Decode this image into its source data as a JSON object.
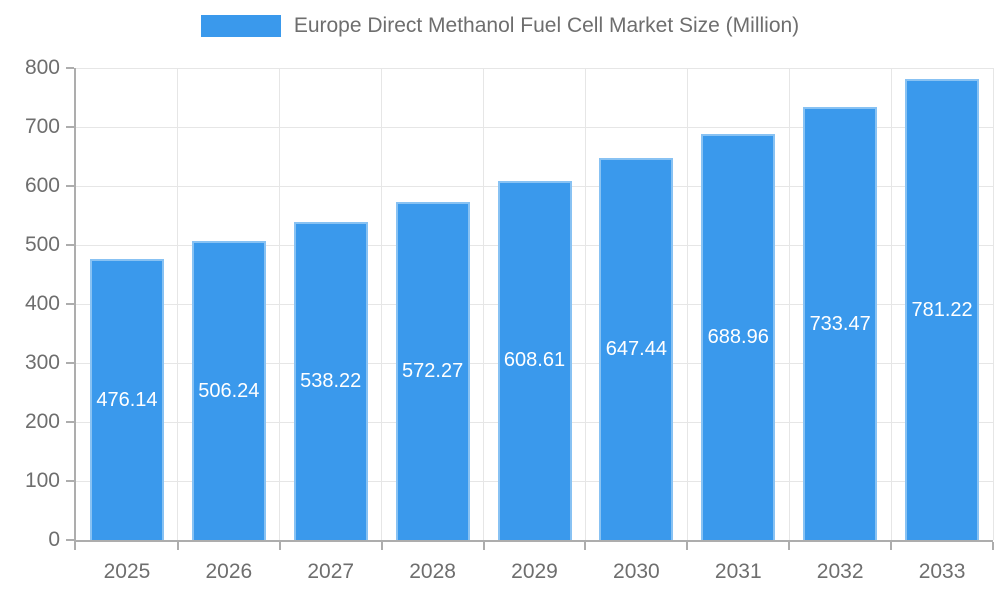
{
  "chart": {
    "legend_swatch_color": "#3a99ec",
    "colors": {
      "bar_fill": "#3a99ec",
      "bar_border_highlight": "rgba(255,255,255,0.4)",
      "gridline": "#e6e6e6",
      "axis_line": "#adadad",
      "tick_text": "#6e6e6e",
      "title_text": "#6e6e6e",
      "bar_value_text": "#ffffff",
      "background": "#ffffff"
    }
  },
  "chart_data": {
    "type": "bar",
    "title": "Europe Direct Methanol Fuel Cell Market Size (Million)",
    "categories": [
      "2025",
      "2026",
      "2027",
      "2028",
      "2029",
      "2030",
      "2031",
      "2032",
      "2033"
    ],
    "values": [
      476.14,
      506.24,
      538.22,
      572.27,
      608.61,
      647.44,
      688.96,
      733.47,
      781.22
    ],
    "value_labels": [
      "476.14",
      "506.24",
      "538.22",
      "572.27",
      "608.61",
      "647.44",
      "688.96",
      "733.47",
      "781.22"
    ],
    "xlabel": "",
    "ylabel": "",
    "ylim": [
      0,
      800
    ],
    "yticks": [
      "0",
      "100",
      "200",
      "300",
      "400",
      "500",
      "600",
      "700",
      "800"
    ],
    "grid": true,
    "legend_position": "top-center",
    "data_label_position": "inside-middle",
    "series_name": "Europe Direct Methanol Fuel Cell Market Size (Million)"
  }
}
